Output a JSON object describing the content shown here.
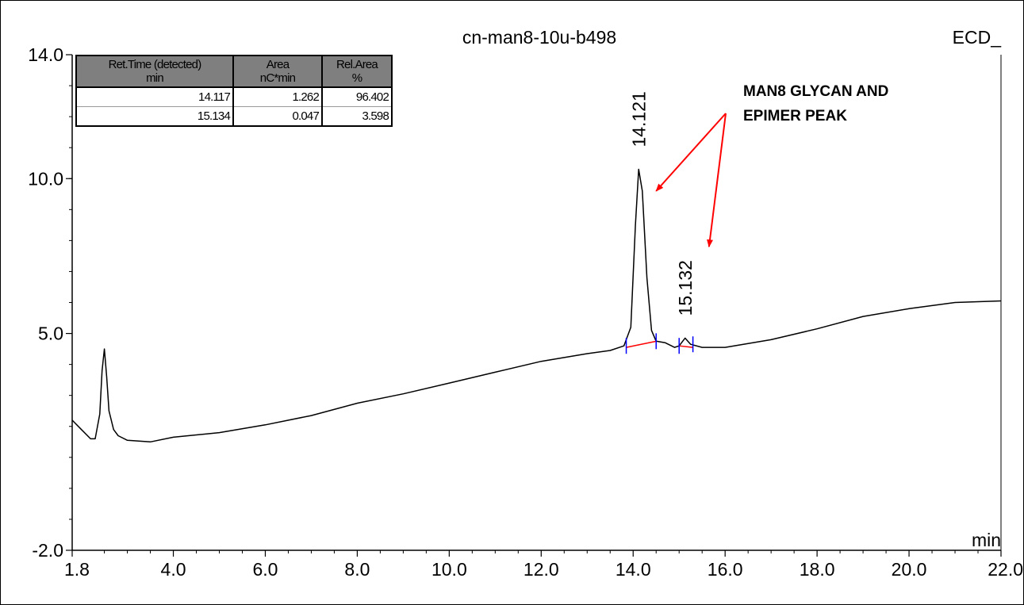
{
  "chart_data": {
    "type": "line",
    "title": "cn-man8-10u-b498",
    "detector": "ECD_",
    "xlabel": "min",
    "ylabel": "",
    "xlim": [
      1.8,
      22.0
    ],
    "ylim": [
      -2.0,
      14.0
    ],
    "x_ticks": [
      "1.8",
      "4.0",
      "6.0",
      "8.0",
      "10.0",
      "12.0",
      "14.0",
      "16.0",
      "18.0",
      "20.0",
      "22.0"
    ],
    "y_ticks": [
      "-2.0",
      "5.0",
      "10.0",
      "14.0"
    ],
    "series": [
      {
        "points": [
          [
            1.8,
            2.2
          ],
          [
            2.0,
            1.9
          ],
          [
            2.2,
            1.6
          ],
          [
            2.3,
            1.6
          ],
          [
            2.4,
            2.4
          ],
          [
            2.45,
            3.8
          ],
          [
            2.5,
            4.5
          ],
          [
            2.55,
            3.6
          ],
          [
            2.6,
            2.5
          ],
          [
            2.7,
            1.9
          ],
          [
            2.8,
            1.7
          ],
          [
            3.0,
            1.55
          ],
          [
            3.5,
            1.5
          ],
          [
            4.0,
            1.65
          ],
          [
            5.0,
            1.8
          ],
          [
            6.0,
            2.05
          ],
          [
            7.0,
            2.35
          ],
          [
            8.0,
            2.75
          ],
          [
            9.0,
            3.05
          ],
          [
            10.0,
            3.4
          ],
          [
            11.0,
            3.75
          ],
          [
            12.0,
            4.1
          ],
          [
            13.0,
            4.35
          ],
          [
            13.5,
            4.45
          ],
          [
            13.8,
            4.6
          ],
          [
            13.95,
            5.2
          ],
          [
            14.05,
            8.5
          ],
          [
            14.12,
            10.3
          ],
          [
            14.2,
            9.6
          ],
          [
            14.3,
            6.8
          ],
          [
            14.4,
            5.1
          ],
          [
            14.5,
            4.75
          ],
          [
            14.7,
            4.7
          ],
          [
            14.9,
            4.55
          ],
          [
            15.0,
            4.6
          ],
          [
            15.13,
            4.85
          ],
          [
            15.25,
            4.65
          ],
          [
            15.5,
            4.55
          ],
          [
            16.0,
            4.55
          ],
          [
            17.0,
            4.8
          ],
          [
            18.0,
            5.15
          ],
          [
            19.0,
            5.55
          ],
          [
            20.0,
            5.8
          ],
          [
            21.0,
            6.0
          ],
          [
            22.0,
            6.05
          ]
        ]
      }
    ],
    "peak_labels": [
      {
        "text": "14.121",
        "x": 14.121,
        "y": 10.3
      },
      {
        "text": "15.132",
        "x": 15.132,
        "y": 4.85
      }
    ],
    "baselines": [
      {
        "x": [
          13.85,
          14.5
        ],
        "y": [
          4.55,
          4.75
        ]
      },
      {
        "x": [
          15.0,
          15.3
        ],
        "y": [
          4.6,
          4.55
        ]
      }
    ],
    "integration_marks": [
      13.85,
      14.5,
      15.0,
      15.3
    ],
    "annotation": {
      "line1": "MAN8 GLYCAN AND",
      "line2": "EPIMER PEAK",
      "arrow_targets": [
        [
          14.5,
          9.6
        ],
        [
          15.65,
          7.8
        ]
      ]
    },
    "colors": {
      "trace": "#000000",
      "baseline": "#ff0000",
      "marks": "#0000ff",
      "arrow": "#ff0000"
    }
  },
  "table": {
    "headers": [
      [
        "Ret.Time (detected)",
        "min"
      ],
      [
        "Area",
        "nC*min"
      ],
      [
        "Rel.Area",
        "%"
      ]
    ],
    "rows": [
      [
        "14.117",
        "1.262",
        "96.402"
      ],
      [
        "15.134",
        "0.047",
        "3.598"
      ]
    ]
  }
}
